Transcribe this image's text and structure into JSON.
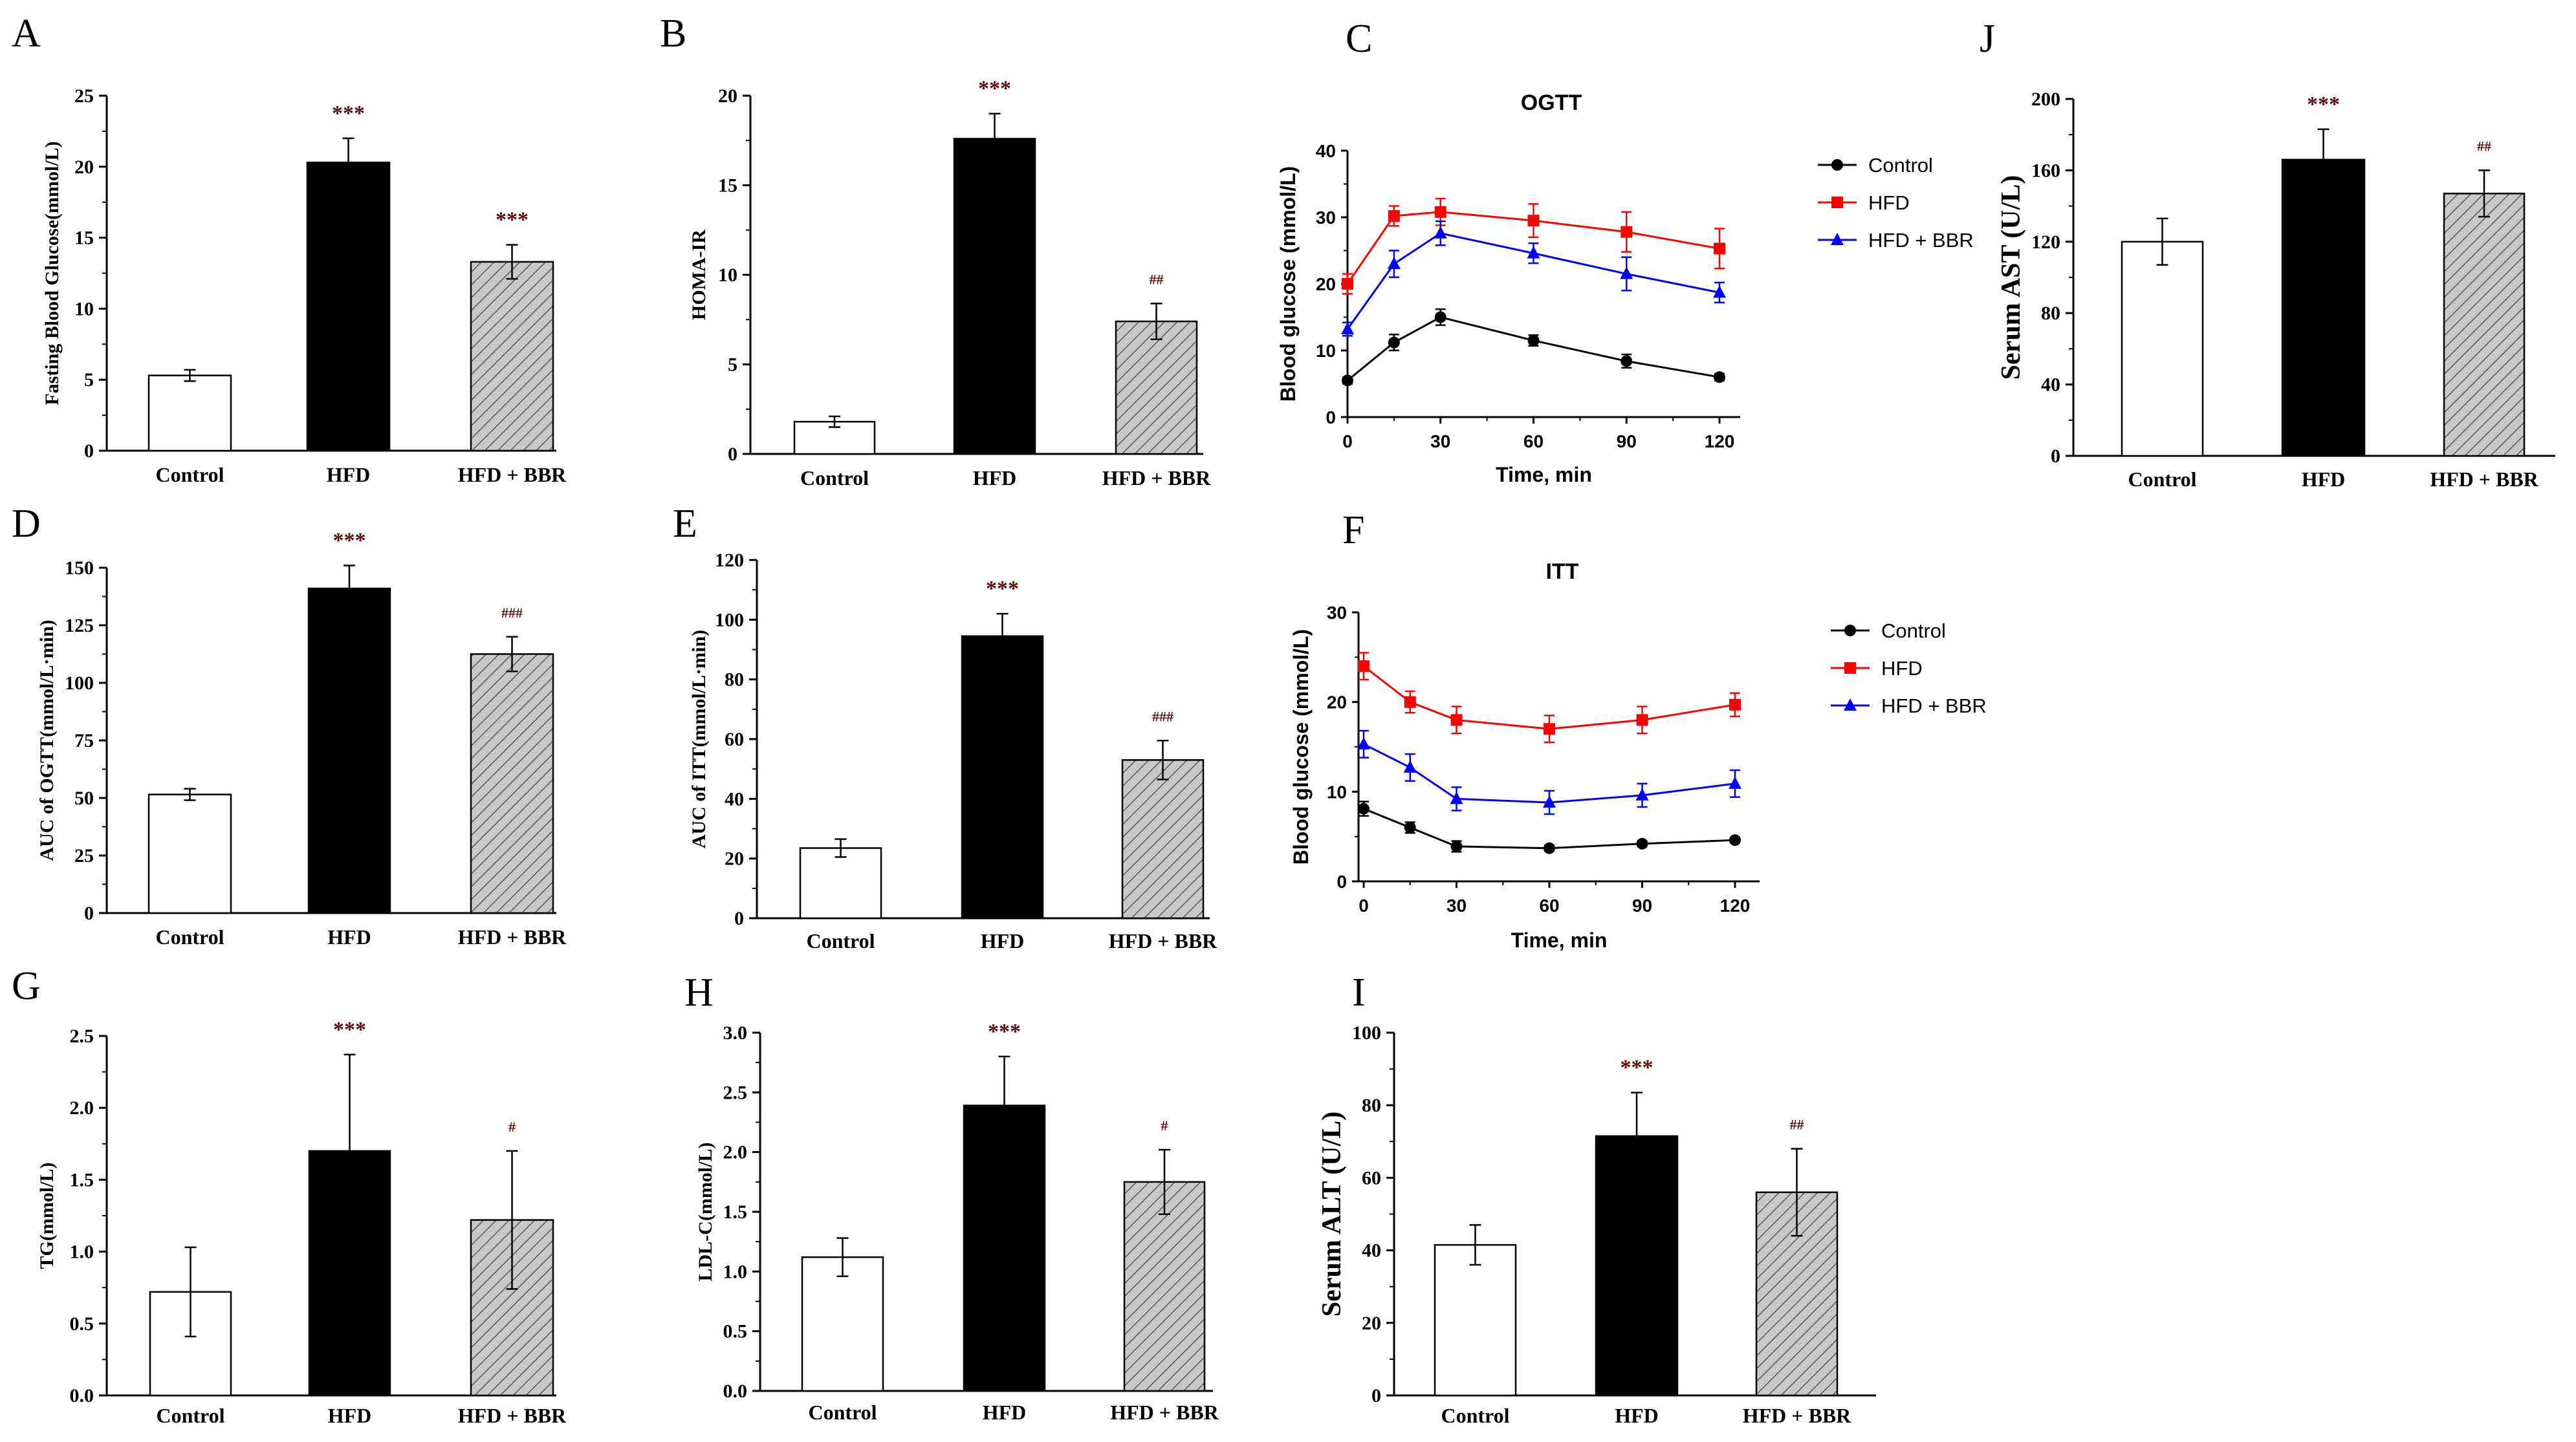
{
  "colors": {
    "control_fill": "#ffffff",
    "hfd_fill": "#000000",
    "bbr_fill": "#c8c8c8",
    "hatch": "#555555",
    "sig": "#5a0c0c",
    "line_control": "#000000",
    "line_hfd": "#ff0000",
    "line_bbr": "#0000ff"
  },
  "chart_data": [
    {
      "panel": "A",
      "type": "bar",
      "ylabel": "Fasting Blood Glucose(mmol/L)",
      "categories": [
        "Control",
        "HFD",
        "HFD + BBR"
      ],
      "values": [
        5.3,
        20.3,
        13.3
      ],
      "errors": [
        0.4,
        1.7,
        1.2
      ],
      "sig": [
        "",
        "***",
        "***"
      ],
      "ylim": [
        0,
        25
      ],
      "yticks": [
        0,
        5,
        10,
        15,
        20,
        25
      ],
      "ytick_labels": [
        "0",
        "5",
        "10",
        "15",
        "20",
        "25"
      ]
    },
    {
      "panel": "B",
      "type": "bar",
      "ylabel": "HOMA-IR",
      "categories": [
        "Control",
        "HFD",
        "HFD + BBR"
      ],
      "values": [
        1.8,
        17.6,
        7.4
      ],
      "errors": [
        0.3,
        1.4,
        1.0
      ],
      "sig": [
        "",
        "***",
        "##"
      ],
      "ylim": [
        0,
        20
      ],
      "yticks": [
        0,
        5,
        10,
        15,
        20
      ],
      "ytick_labels": [
        "0",
        "5",
        "10",
        "15",
        "20"
      ]
    },
    {
      "panel": "C",
      "type": "line",
      "title": "OGTT",
      "xlabel": "Time, min",
      "ylabel": "Blood glucose (mmol/L)",
      "x": [
        0,
        15,
        30,
        60,
        90,
        120
      ],
      "xlim": [
        0,
        130
      ],
      "ylim": [
        0,
        40
      ],
      "xticks": [
        0,
        30,
        60,
        90,
        120
      ],
      "xtick_labels": [
        "0",
        "30",
        "60",
        "90",
        "120"
      ],
      "yticks": [
        0,
        10,
        20,
        30,
        40
      ],
      "ytick_labels": [
        "0",
        "10",
        "20",
        "30",
        "40"
      ],
      "series": [
        {
          "name": "Control",
          "marker": "circle",
          "values": [
            5.5,
            11.2,
            15.0,
            11.5,
            8.4,
            6.0
          ],
          "errors": [
            0.5,
            1.2,
            1.2,
            0.8,
            1.0,
            0.5
          ]
        },
        {
          "name": "HFD",
          "marker": "square",
          "values": [
            20.0,
            30.2,
            30.8,
            29.5,
            27.8,
            25.3
          ],
          "errors": [
            1.5,
            1.5,
            2.0,
            2.5,
            3.0,
            3.0
          ]
        },
        {
          "name": "HFD + BBR",
          "marker": "triangle",
          "values": [
            13.2,
            23.0,
            27.6,
            24.6,
            21.5,
            18.7
          ],
          "errors": [
            1.0,
            2.0,
            1.8,
            1.5,
            2.5,
            1.5
          ]
        }
      ]
    },
    {
      "panel": "J",
      "type": "bar",
      "ylabel": "Serum AST (U/L)",
      "categories": [
        "Control",
        "HFD",
        "HFD + BBR"
      ],
      "values": [
        120,
        166,
        147
      ],
      "errors": [
        13,
        17,
        13
      ],
      "sig": [
        "",
        "***",
        "##"
      ],
      "ylim": [
        0,
        200
      ],
      "yticks": [
        0,
        40,
        80,
        120,
        160,
        200
      ],
      "ytick_labels": [
        "0",
        "40",
        "80",
        "120",
        "160",
        "200"
      ]
    },
    {
      "panel": "D",
      "type": "bar",
      "ylabel": "AUC of OGTT(mmol/L·min)",
      "categories": [
        "Control",
        "HFD",
        "HFD + BBR"
      ],
      "values": [
        51.5,
        141,
        112.5
      ],
      "errors": [
        2.5,
        10,
        7.5
      ],
      "sig": [
        "",
        "***",
        "###"
      ],
      "ylim": [
        0,
        150
      ],
      "yticks": [
        0,
        25,
        50,
        75,
        100,
        125,
        150
      ],
      "ytick_labels": [
        "0",
        "25",
        "50",
        "75",
        "100",
        "125",
        "150"
      ]
    },
    {
      "panel": "E",
      "type": "bar",
      "ylabel": "AUC of ITT(mmol/L·min)",
      "categories": [
        "Control",
        "HFD",
        "HFD + BBR"
      ],
      "values": [
        23.5,
        94.5,
        53
      ],
      "errors": [
        3,
        7.5,
        6.5
      ],
      "sig": [
        "",
        "***",
        "###"
      ],
      "ylim": [
        0,
        120
      ],
      "yticks": [
        0,
        20,
        40,
        60,
        80,
        100,
        120
      ],
      "ytick_labels": [
        "0",
        "20",
        "40",
        "60",
        "80",
        "100",
        "120"
      ]
    },
    {
      "panel": "F",
      "type": "line",
      "title": "ITT",
      "xlabel": "Time, min",
      "ylabel": "Blood glucose (mmol/L)",
      "x": [
        0,
        15,
        30,
        60,
        90,
        120
      ],
      "xlim": [
        0,
        130
      ],
      "ylim": [
        0,
        30
      ],
      "xticks": [
        0,
        30,
        60,
        90,
        120
      ],
      "xtick_labels": [
        "0",
        "30",
        "60",
        "90",
        "120"
      ],
      "yticks": [
        0,
        10,
        20,
        30
      ],
      "ytick_labels": [
        "0",
        "10",
        "20",
        "30"
      ],
      "series": [
        {
          "name": "Control",
          "marker": "circle",
          "values": [
            8.1,
            6.0,
            3.9,
            3.7,
            4.2,
            4.6
          ],
          "errors": [
            0.8,
            0.6,
            0.6,
            0.3,
            0.3,
            0.3
          ]
        },
        {
          "name": "HFD",
          "marker": "square",
          "values": [
            24.0,
            20.0,
            18.0,
            17.0,
            18.0,
            19.7
          ],
          "errors": [
            1.5,
            1.2,
            1.5,
            1.5,
            1.5,
            1.3
          ]
        },
        {
          "name": "HFD + BBR",
          "marker": "triangle",
          "values": [
            15.3,
            12.7,
            9.2,
            8.8,
            9.6,
            10.9
          ],
          "errors": [
            1.5,
            1.5,
            1.3,
            1.3,
            1.3,
            1.5
          ]
        }
      ]
    },
    {
      "panel": "G",
      "type": "bar",
      "ylabel": "TG(mmol/L)",
      "categories": [
        "Control",
        "HFD",
        "HFD + BBR"
      ],
      "values": [
        0.72,
        1.7,
        1.22
      ],
      "errors": [
        0.31,
        0.67,
        0.48
      ],
      "sig": [
        "",
        "***",
        "#"
      ],
      "ylim": [
        0,
        2.5
      ],
      "yticks": [
        0,
        0.5,
        1.0,
        1.5,
        2.0,
        2.5
      ],
      "ytick_labels": [
        "0.0",
        "0.5",
        "1.0",
        "1.5",
        "2.0",
        "2.5"
      ]
    },
    {
      "panel": "H",
      "type": "bar",
      "ylabel": "LDL-C(mmol/L)",
      "categories": [
        "Control",
        "HFD",
        "HFD + BBR"
      ],
      "values": [
        1.12,
        2.39,
        1.75
      ],
      "errors": [
        0.16,
        0.41,
        0.27
      ],
      "sig": [
        "",
        "***",
        "#"
      ],
      "ylim": [
        0,
        3.0
      ],
      "yticks": [
        0,
        0.5,
        1.0,
        1.5,
        2.0,
        2.5,
        3.0
      ],
      "ytick_labels": [
        "0.0",
        "0.5",
        "1.0",
        "1.5",
        "2.0",
        "2.5",
        "3.0"
      ]
    },
    {
      "panel": "I",
      "type": "bar",
      "ylabel": "Serum ALT (U/L)",
      "categories": [
        "Control",
        "HFD",
        "HFD + BBR"
      ],
      "values": [
        41.5,
        71.5,
        56
      ],
      "errors": [
        5.5,
        12,
        12
      ],
      "sig": [
        "",
        "***",
        "##"
      ],
      "ylim": [
        0,
        100
      ],
      "yticks": [
        0,
        20,
        40,
        60,
        80,
        100
      ],
      "ytick_labels": [
        "0",
        "20",
        "40",
        "60",
        "80",
        "100"
      ]
    }
  ]
}
